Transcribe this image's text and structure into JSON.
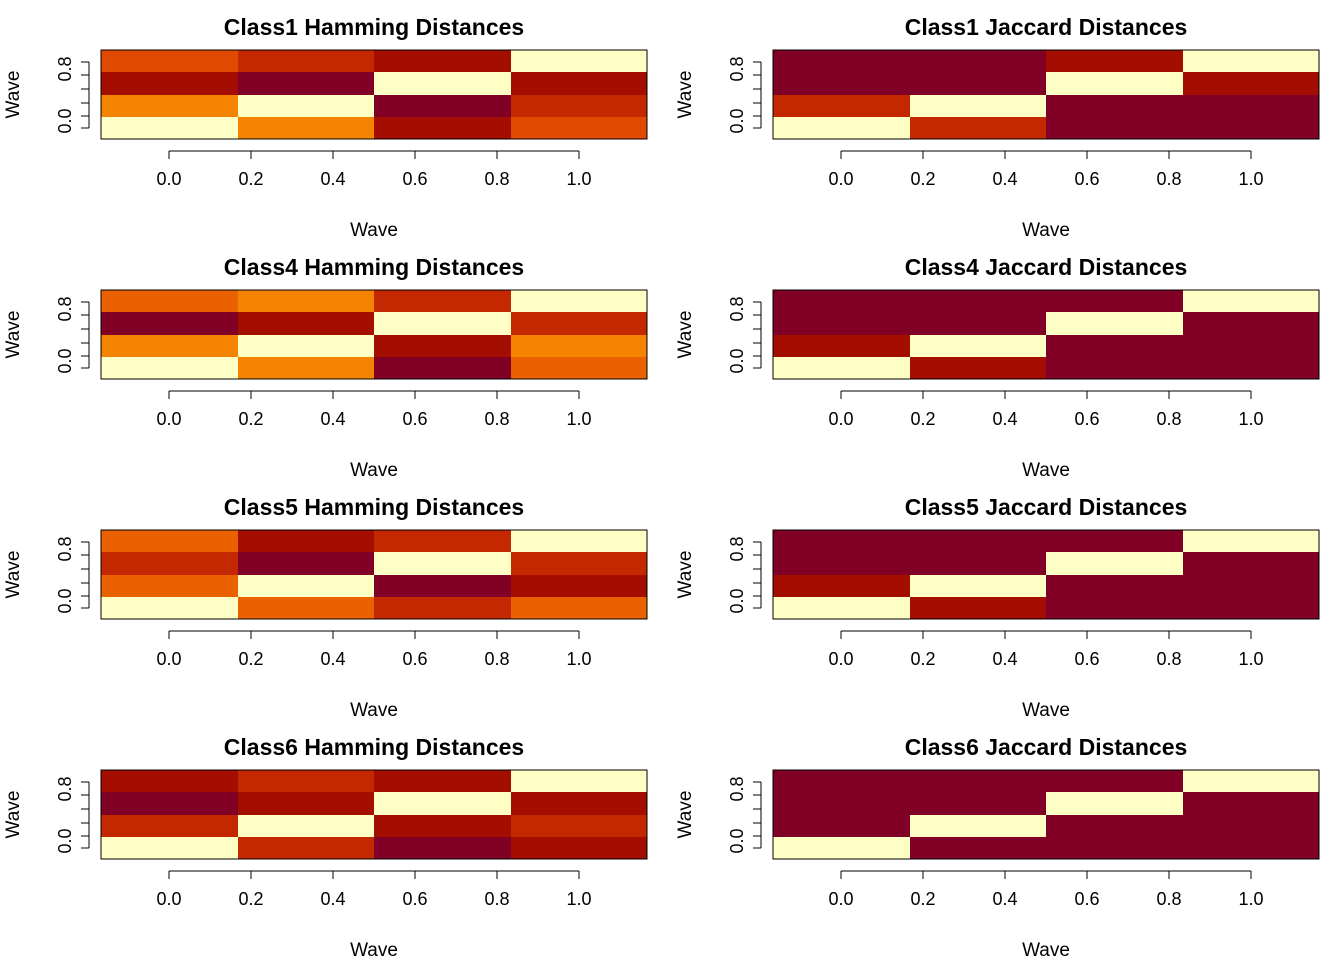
{
  "chart_data": [
    {
      "type": "heatmap",
      "title": "Class1 Hamming Distances",
      "xlabel": "Wave",
      "ylabel": "Wave",
      "x_ticks": [
        "0.0",
        "0.2",
        "0.4",
        "0.6",
        "0.8",
        "1.0"
      ],
      "y_ticks": [
        "0.0",
        "0.8"
      ],
      "colors_top_to_bottom": [
        [
          "#E04A00",
          "#C42800",
          "#A30E00",
          "#FFFEC4"
        ],
        [
          "#A30E00",
          "#800026",
          "#FFFEC4",
          "#A30E00"
        ],
        [
          "#F48300",
          "#FFFEC4",
          "#800026",
          "#C42800"
        ],
        [
          "#FFFEC4",
          "#F48300",
          "#A30E00",
          "#E04A00"
        ]
      ]
    },
    {
      "type": "heatmap",
      "title": "Class1 Jaccard Distances",
      "xlabel": "Wave",
      "ylabel": "Wave",
      "x_ticks": [
        "0.0",
        "0.2",
        "0.4",
        "0.6",
        "0.8",
        "1.0"
      ],
      "y_ticks": [
        "0.0",
        "0.8"
      ],
      "colors_top_to_bottom": [
        [
          "#800026",
          "#800026",
          "#A30E00",
          "#FFFEC4"
        ],
        [
          "#800026",
          "#800026",
          "#FFFEC4",
          "#A30E00"
        ],
        [
          "#C42800",
          "#FFFEC4",
          "#800026",
          "#800026"
        ],
        [
          "#FFFEC4",
          "#C42800",
          "#800026",
          "#800026"
        ]
      ]
    },
    {
      "type": "heatmap",
      "title": "Class4 Hamming Distances",
      "xlabel": "Wave",
      "ylabel": "Wave",
      "x_ticks": [
        "0.0",
        "0.2",
        "0.4",
        "0.6",
        "0.8",
        "1.0"
      ],
      "y_ticks": [
        "0.0",
        "0.8"
      ],
      "colors_top_to_bottom": [
        [
          "#EA6100",
          "#F48300",
          "#C42800",
          "#FFFEC4"
        ],
        [
          "#800026",
          "#A30E00",
          "#FFFEC4",
          "#C42800"
        ],
        [
          "#F48300",
          "#FFFEC4",
          "#A30E00",
          "#F48300"
        ],
        [
          "#FFFEC4",
          "#F48300",
          "#800026",
          "#EA6100"
        ]
      ]
    },
    {
      "type": "heatmap",
      "title": "Class4 Jaccard Distances",
      "xlabel": "Wave",
      "ylabel": "Wave",
      "x_ticks": [
        "0.0",
        "0.2",
        "0.4",
        "0.6",
        "0.8",
        "1.0"
      ],
      "y_ticks": [
        "0.0",
        "0.8"
      ],
      "colors_top_to_bottom": [
        [
          "#800026",
          "#800026",
          "#800026",
          "#FFFEC4"
        ],
        [
          "#800026",
          "#800026",
          "#FFFEC4",
          "#800026"
        ],
        [
          "#A30E00",
          "#FFFEC4",
          "#800026",
          "#800026"
        ],
        [
          "#FFFEC4",
          "#A30E00",
          "#800026",
          "#800026"
        ]
      ]
    },
    {
      "type": "heatmap",
      "title": "Class5 Hamming Distances",
      "xlabel": "Wave",
      "ylabel": "Wave",
      "x_ticks": [
        "0.0",
        "0.2",
        "0.4",
        "0.6",
        "0.8",
        "1.0"
      ],
      "y_ticks": [
        "0.0",
        "0.8"
      ],
      "colors_top_to_bottom": [
        [
          "#EA6100",
          "#A30E00",
          "#C42800",
          "#FFFEC4"
        ],
        [
          "#C42800",
          "#800026",
          "#FFFEC4",
          "#C42800"
        ],
        [
          "#EA6100",
          "#FFFEC4",
          "#800026",
          "#A30E00"
        ],
        [
          "#FFFEC4",
          "#EA6100",
          "#C42800",
          "#EA6100"
        ]
      ]
    },
    {
      "type": "heatmap",
      "title": "Class5 Jaccard Distances",
      "xlabel": "Wave",
      "ylabel": "Wave",
      "x_ticks": [
        "0.0",
        "0.2",
        "0.4",
        "0.6",
        "0.8",
        "1.0"
      ],
      "y_ticks": [
        "0.0",
        "0.8"
      ],
      "colors_top_to_bottom": [
        [
          "#800026",
          "#800026",
          "#800026",
          "#FFFEC4"
        ],
        [
          "#800026",
          "#800026",
          "#FFFEC4",
          "#800026"
        ],
        [
          "#A30E00",
          "#FFFEC4",
          "#800026",
          "#800026"
        ],
        [
          "#FFFEC4",
          "#A30E00",
          "#800026",
          "#800026"
        ]
      ]
    },
    {
      "type": "heatmap",
      "title": "Class6 Hamming Distances",
      "xlabel": "Wave",
      "ylabel": "Wave",
      "x_ticks": [
        "0.0",
        "0.2",
        "0.4",
        "0.6",
        "0.8",
        "1.0"
      ],
      "y_ticks": [
        "0.0",
        "0.8"
      ],
      "colors_top_to_bottom": [
        [
          "#A30E00",
          "#C42800",
          "#A30E00",
          "#FFFEC4"
        ],
        [
          "#800026",
          "#A30E00",
          "#FFFEC4",
          "#A30E00"
        ],
        [
          "#C42800",
          "#FFFEC4",
          "#A30E00",
          "#C42800"
        ],
        [
          "#FFFEC4",
          "#C42800",
          "#800026",
          "#A30E00"
        ]
      ]
    },
    {
      "type": "heatmap",
      "title": "Class6 Jaccard Distances",
      "xlabel": "Wave",
      "ylabel": "Wave",
      "x_ticks": [
        "0.0",
        "0.2",
        "0.4",
        "0.6",
        "0.8",
        "1.0"
      ],
      "y_ticks": [
        "0.0",
        "0.8"
      ],
      "colors_top_to_bottom": [
        [
          "#800026",
          "#800026",
          "#800026",
          "#FFFEC4"
        ],
        [
          "#800026",
          "#800026",
          "#FFFEC4",
          "#800026"
        ],
        [
          "#800026",
          "#FFFEC4",
          "#800026",
          "#800026"
        ],
        [
          "#FFFEC4",
          "#800026",
          "#800026",
          "#800026"
        ]
      ]
    }
  ]
}
